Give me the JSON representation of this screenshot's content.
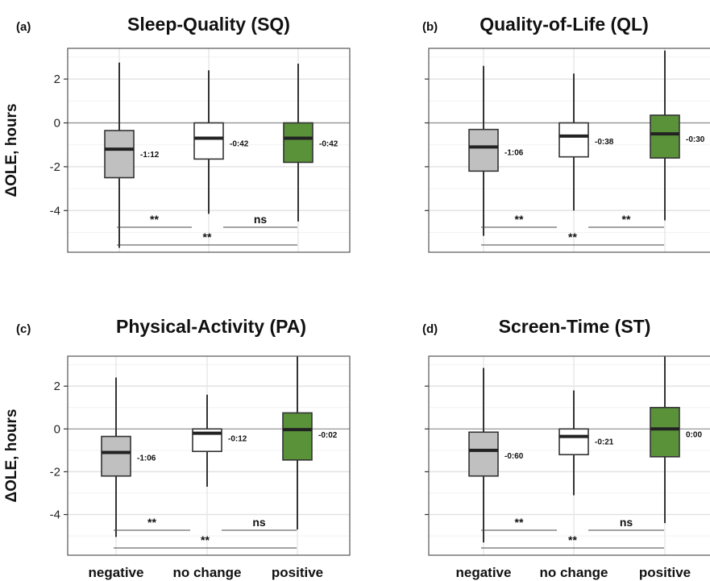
{
  "chart_data": [
    {
      "type": "boxplot",
      "panel_label": "(a)",
      "title": "Sleep-Quality (SQ)",
      "ylabel": "ΔOLE, hours",
      "ylim": [
        -5.9,
        3.4
      ],
      "yticks": [
        "2",
        "0",
        "-2",
        "-4"
      ],
      "categories": [
        "negative",
        "no change",
        "positive"
      ],
      "boxes": [
        {
          "whisker_low": -5.7,
          "q1": -2.5,
          "median": -1.2,
          "q3": -0.35,
          "whisker_high": 2.75,
          "fill": "#c0c0c0",
          "label": "-1:12"
        },
        {
          "whisker_low": -4.15,
          "q1": -1.65,
          "median": -0.7,
          "q3": 0.0,
          "whisker_high": 2.4,
          "fill": "#ffffff",
          "label": "-0:42"
        },
        {
          "whisker_low": -4.5,
          "q1": -1.8,
          "median": -0.7,
          "q3": 0.0,
          "whisker_high": 2.7,
          "fill": "#5a923a",
          "label": "-0:42"
        }
      ],
      "significance": [
        "**",
        "ns",
        "**"
      ]
    },
    {
      "type": "boxplot",
      "panel_label": "(b)",
      "title": "Quality-of-Life (QL)",
      "ylim": [
        -5.9,
        3.4
      ],
      "categories": [
        "negative",
        "no change",
        "positive"
      ],
      "boxes": [
        {
          "whisker_low": -5.15,
          "q1": -2.2,
          "median": -1.1,
          "q3": -0.3,
          "whisker_high": 2.6,
          "fill": "#c0c0c0",
          "label": "-1:06"
        },
        {
          "whisker_low": -4.0,
          "q1": -1.55,
          "median": -0.6,
          "q3": 0.0,
          "whisker_high": 2.25,
          "fill": "#ffffff",
          "label": "-0:38"
        },
        {
          "whisker_low": -4.45,
          "q1": -1.6,
          "median": -0.5,
          "q3": 0.35,
          "whisker_high": 3.3,
          "fill": "#5a923a",
          "label": "-0:30"
        }
      ],
      "significance": [
        "**",
        "**",
        "**"
      ]
    },
    {
      "type": "boxplot",
      "panel_label": "(c)",
      "title": "Physical-Activity (PA)",
      "ylabel": "ΔOLE, hours",
      "ylim": [
        -5.9,
        3.4
      ],
      "yticks": [
        "2",
        "0",
        "-2",
        "-4"
      ],
      "categories": [
        "negative",
        "no change",
        "positive"
      ],
      "category_labels_shown": [
        "negative",
        "no change",
        "positive"
      ],
      "boxes": [
        {
          "whisker_low": -5.05,
          "q1": -2.2,
          "median": -1.1,
          "q3": -0.35,
          "whisker_high": 2.4,
          "fill": "#c0c0c0",
          "label": "-1:06"
        },
        {
          "whisker_low": -2.7,
          "q1": -1.05,
          "median": -0.2,
          "q3": 0.0,
          "whisker_high": 1.6,
          "fill": "#ffffff",
          "label": "-0:12"
        },
        {
          "whisker_low": -4.7,
          "q1": -1.45,
          "median": -0.03,
          "q3": 0.75,
          "whisker_high": 3.4,
          "fill": "#5a923a",
          "label": "-0:02"
        }
      ],
      "significance": [
        "**",
        "ns",
        "**"
      ]
    },
    {
      "type": "boxplot",
      "panel_label": "(d)",
      "title": "Screen-Time (ST)",
      "ylim": [
        -5.9,
        3.4
      ],
      "categories": [
        "negative",
        "no change",
        "positive"
      ],
      "category_labels_shown": [
        "negative",
        "no change",
        "positive"
      ],
      "boxes": [
        {
          "whisker_low": -5.3,
          "q1": -2.2,
          "median": -1.0,
          "q3": -0.15,
          "whisker_high": 2.85,
          "fill": "#c0c0c0",
          "label": "-0:60"
        },
        {
          "whisker_low": -3.1,
          "q1": -1.2,
          "median": -0.35,
          "q3": 0.0,
          "whisker_high": 1.8,
          "fill": "#ffffff",
          "label": "-0:21"
        },
        {
          "whisker_low": -4.4,
          "q1": -1.3,
          "median": 0.0,
          "q3": 1.0,
          "whisker_high": 3.4,
          "fill": "#5a923a",
          "label": "0:00"
        }
      ],
      "significance": [
        "**",
        "ns",
        "**"
      ]
    }
  ]
}
